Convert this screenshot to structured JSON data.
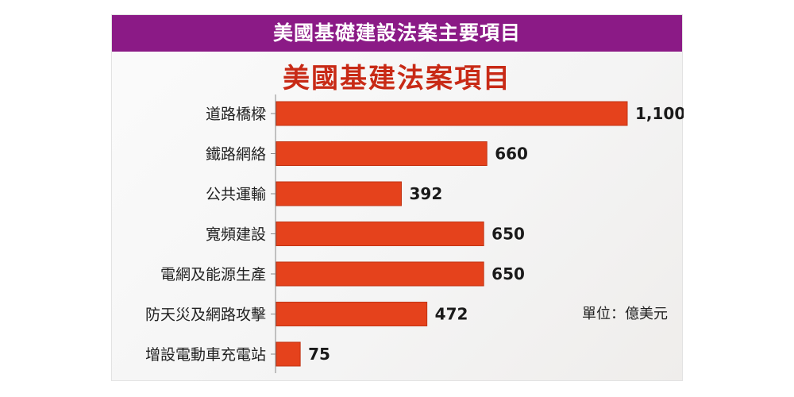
{
  "banner": {
    "text": "美國基礎建設法案主要項目",
    "color": "#8b1a86"
  },
  "unit_note": "單位：億美元",
  "chart_data": {
    "type": "bar",
    "orientation": "horizontal",
    "title": "美國基建法案項目",
    "categories": [
      "道路橋樑",
      "鐵路網絡",
      "公共運輸",
      "寬頻建設",
      "電網及能源生產",
      "防天災及網路攻擊",
      "增設電動車充電站"
    ],
    "values": [
      1100,
      660,
      392,
      650,
      650,
      472,
      75
    ],
    "value_labels": [
      "1,100",
      "660",
      "392",
      "650",
      "650",
      "472",
      "75"
    ],
    "xlim": [
      0,
      1100
    ],
    "grid": false,
    "bar_color": "#e5421c",
    "title_color": "#c82a16"
  }
}
